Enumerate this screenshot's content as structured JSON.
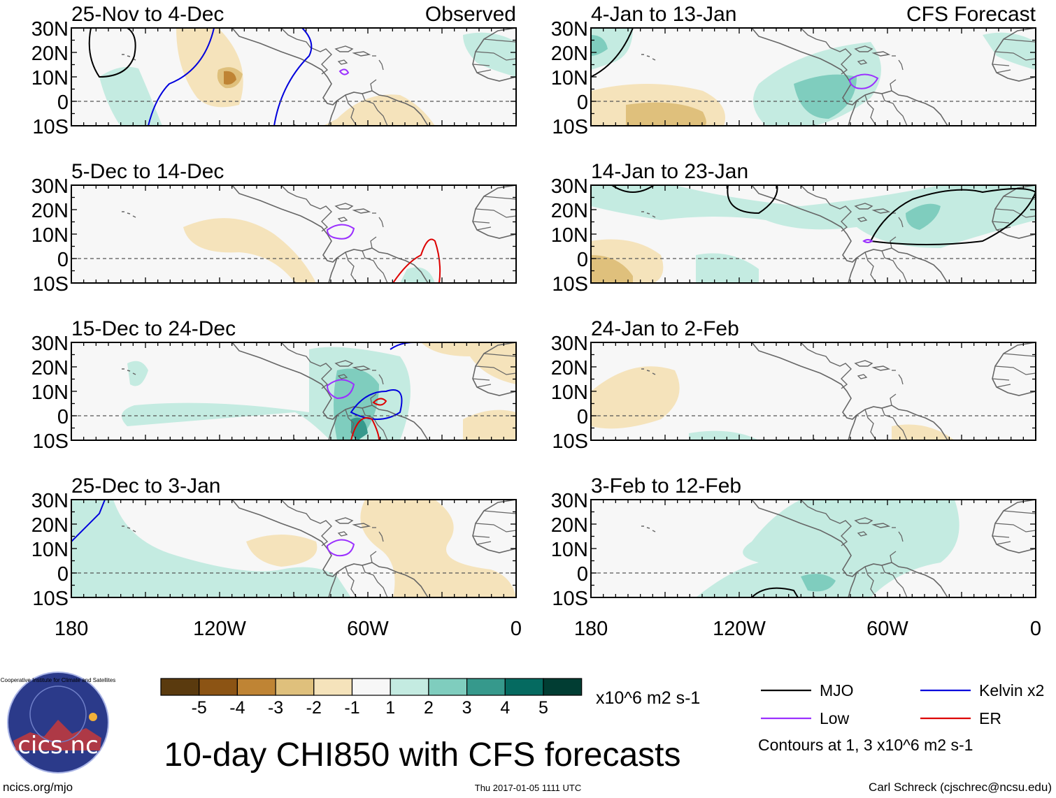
{
  "figure": {
    "title": "10-day CHI850 with CFS forecasts",
    "left_header": "Observed",
    "right_header": "CFS Forecast",
    "url": "ncics.org/mjo",
    "timestamp": "Thu 2017-01-05 1111 UTC",
    "author": "Carl Schreck (cjschrec@ncsu.edu)",
    "logo": {
      "name": "cics.nc",
      "ring_text": "Cooperative Institute for Climate and Satellites"
    }
  },
  "axes": {
    "lat_ticks": [
      "30N",
      "20N",
      "10N",
      "0",
      "10S"
    ],
    "lat_values": [
      30,
      20,
      10,
      0,
      -10
    ],
    "lon_ticks": [
      "180",
      "120W",
      "60W",
      "0"
    ],
    "lon_values": [
      -180,
      -120,
      -60,
      0
    ]
  },
  "panels": [
    {
      "title": "25-Nov to 4-Dec",
      "column": "Observed"
    },
    {
      "title": "5-Dec to 14-Dec",
      "column": "Observed"
    },
    {
      "title": "15-Dec to 24-Dec",
      "column": "Observed"
    },
    {
      "title": "25-Dec to 3-Jan",
      "column": "Observed"
    },
    {
      "title": "4-Jan to 13-Jan",
      "column": "CFS Forecast"
    },
    {
      "title": "14-Jan to 23-Jan",
      "column": "CFS Forecast"
    },
    {
      "title": "24-Jan to 2-Feb",
      "column": "CFS Forecast"
    },
    {
      "title": "3-Feb to 12-Feb",
      "column": "CFS Forecast"
    }
  ],
  "colorbar": {
    "unit": "x10^6 m2 s-1",
    "labels": [
      "-5",
      "-4",
      "-3",
      "-2",
      "-1",
      "1",
      "2",
      "3",
      "4",
      "5"
    ],
    "colors": [
      "#5a3a0e",
      "#8c5414",
      "#bf8434",
      "#dfc07c",
      "#f5e3bb",
      "#f7f7f7",
      "#c4ebe1",
      "#7fcdbe",
      "#36998c",
      "#056a60",
      "#013d33"
    ]
  },
  "legend": {
    "items": [
      {
        "label": "MJO",
        "color": "#000000"
      },
      {
        "label": "Kelvin x2",
        "color": "#0000dd"
      },
      {
        "label": "Low",
        "color": "#9b30ff"
      },
      {
        "label": "ER",
        "color": "#dd0000"
      }
    ],
    "note": "Contours at 1, 3 x10^6 m2 s-1"
  },
  "chart_data": {
    "type": "map",
    "variable": "CHI850 (850-hPa velocity potential anomaly)",
    "domain": {
      "lon_range": [
        -180,
        0
      ],
      "lat_range": [
        -10,
        30
      ]
    }
  }
}
